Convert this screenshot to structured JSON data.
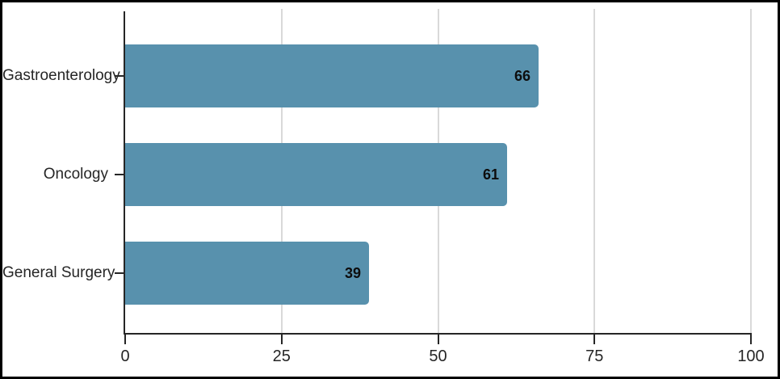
{
  "chart_data": {
    "type": "bar",
    "orientation": "horizontal",
    "title": "",
    "xlabel": "",
    "ylabel": "",
    "categories": [
      "Gastroenterology",
      "Oncology",
      "General Surgery"
    ],
    "values": [
      66,
      61,
      39
    ],
    "value_labels": [
      "66",
      "61",
      "39"
    ],
    "xlim": [
      0,
      100
    ],
    "x_ticks": [
      "0",
      "25",
      "50",
      "75",
      "100"
    ],
    "x_tick_values": [
      0,
      25,
      50,
      75,
      100
    ],
    "legend": "none",
    "grid": "vertical",
    "colors": {
      "bar_fill": "#5891ad",
      "gridline": "#d9d9d9",
      "axis": "#262626",
      "tick_text": "#262626",
      "category_text": "#262626",
      "value_text": "#0d0d0d",
      "background": "#ffffff",
      "border": "#000000"
    }
  }
}
